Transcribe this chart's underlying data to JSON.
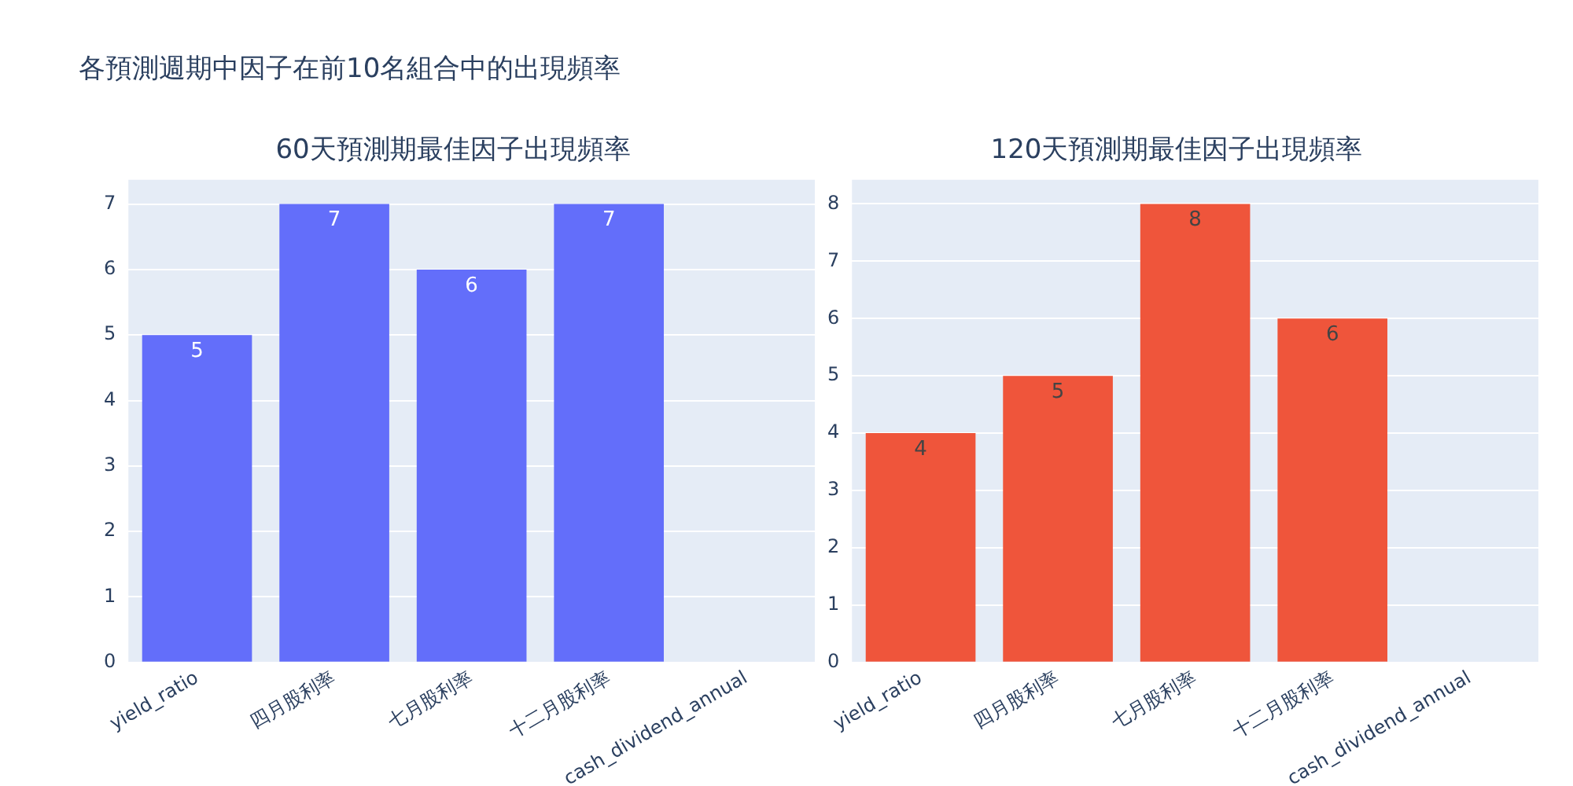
{
  "chart_data": [
    {
      "type": "bar",
      "title": "60天預測期最佳因子出現頻率",
      "annotations": [
        "各預測週期中因子在前10名組合中的出現頻率"
      ],
      "categories": [
        "yield_ratio",
        "四月股利率",
        "七月股利率",
        "十二月股利率",
        "cash_dividend_annual"
      ],
      "values": [
        5,
        7,
        6,
        7,
        null
      ],
      "color": "#636efa",
      "ylim": [
        0,
        7.37
      ],
      "yticks": [
        0,
        1,
        2,
        3,
        4,
        5,
        6,
        7
      ],
      "grid": "y",
      "data_labels": true
    },
    {
      "type": "bar",
      "title": "120天預測期最佳因子出現頻率",
      "categories": [
        "yield_ratio",
        "四月股利率",
        "七月股利率",
        "十二月股利率",
        "cash_dividend_annual"
      ],
      "values": [
        4,
        5,
        8,
        6,
        null
      ],
      "color": "#ef553b",
      "ylim": [
        0,
        8.42
      ],
      "yticks": [
        0,
        1,
        2,
        3,
        4,
        5,
        6,
        7,
        8
      ],
      "grid": "y",
      "data_labels": true
    }
  ]
}
